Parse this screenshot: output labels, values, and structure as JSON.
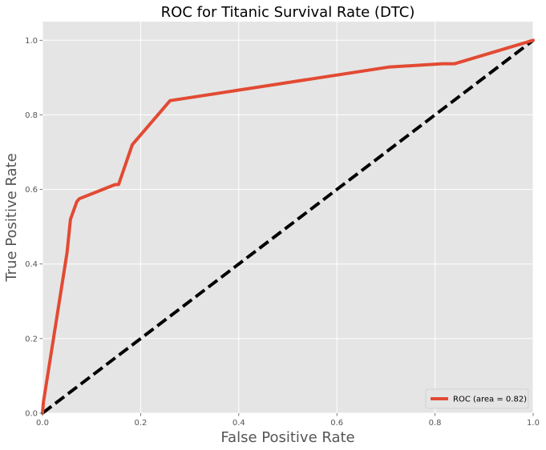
{
  "chart_data": {
    "type": "line",
    "title": "ROC for Titanic Survival Rate (DTC)",
    "xlabel": "False Positive Rate",
    "ylabel": "True Positive Rate",
    "xlim": [
      0.0,
      1.0
    ],
    "ylim": [
      0.0,
      1.05
    ],
    "xticks": [
      "0.0",
      "0.2",
      "0.4",
      "0.6",
      "0.8",
      "1.0"
    ],
    "yticks": [
      "0.0",
      "0.2",
      "0.4",
      "0.6",
      "0.8",
      "1.0"
    ],
    "grid": true,
    "legend_position": "bottom-right",
    "series": [
      {
        "name": "ROC (area = 0.82)",
        "color": "#e24a33",
        "style": "solid",
        "x": [
          0.0,
          0.002,
          0.05,
          0.057,
          0.07,
          0.075,
          0.148,
          0.155,
          0.183,
          0.26,
          0.705,
          0.815,
          0.84,
          1.0
        ],
        "y": [
          0.0,
          0.03,
          0.43,
          0.52,
          0.567,
          0.575,
          0.613,
          0.613,
          0.72,
          0.838,
          0.928,
          0.937,
          0.937,
          1.0
        ]
      },
      {
        "color": "#000000",
        "style": "dashed",
        "x": [
          0.0,
          1.0
        ],
        "y": [
          0.0,
          1.0
        ]
      }
    ]
  }
}
